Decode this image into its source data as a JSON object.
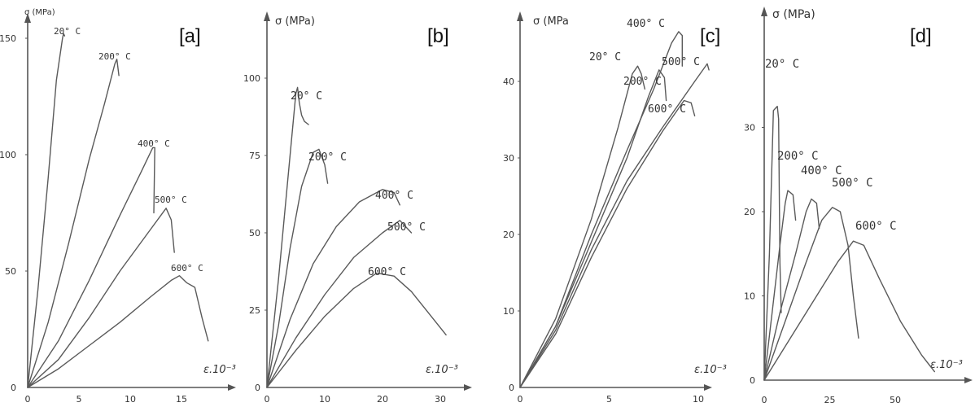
{
  "chart_data": [
    {
      "type": "line",
      "panel": "[a]",
      "ylabel": "σ (MPa)",
      "xlabel": "ε.10⁻³",
      "xlim": [
        0,
        19
      ],
      "ylim": [
        0,
        160
      ],
      "xticks": [
        0,
        5,
        10,
        15
      ],
      "yticks": [
        0,
        50,
        100,
        150
      ],
      "series": [
        {
          "name": "20° C",
          "x": [
            0,
            1,
            2,
            2.8,
            3.4,
            3.5,
            3.6
          ],
          "y": [
            0,
            42,
            90,
            132,
            150,
            152,
            151
          ]
        },
        {
          "name": "200° C",
          "x": [
            0,
            2,
            4,
            6,
            7.5,
            8.5,
            8.7,
            8.9
          ],
          "y": [
            0,
            28,
            62,
            98,
            122,
            139,
            141,
            134
          ]
        },
        {
          "name": "400° C",
          "x": [
            0,
            3,
            6,
            9,
            11,
            12.2,
            12.4,
            12.3
          ],
          "y": [
            0,
            20,
            46,
            74,
            92,
            103,
            103,
            75
          ]
        },
        {
          "name": "500° C",
          "x": [
            0,
            3,
            6,
            9,
            12,
            13.5,
            14,
            14.3
          ],
          "y": [
            0,
            12,
            30,
            50,
            68,
            77,
            72,
            58
          ]
        },
        {
          "name": "600° C",
          "x": [
            0,
            3,
            6,
            9,
            12,
            14,
            14.8,
            15.5,
            16.3,
            17,
            17.6
          ],
          "y": [
            0,
            8,
            18,
            28,
            39,
            46,
            48,
            45,
            43,
            30,
            20
          ]
        }
      ]
    },
    {
      "type": "line",
      "panel": "[b]",
      "ylabel": "σ (MPa)",
      "xlabel": "ε.10⁻³",
      "xlim": [
        0,
        34
      ],
      "ylim": [
        0,
        120
      ],
      "xticks": [
        0,
        10,
        20,
        30
      ],
      "yticks": [
        0,
        25,
        50,
        75,
        100
      ],
      "series": [
        {
          "name": "20° C",
          "x": [
            0,
            2,
            4,
            5,
            5.3,
            5.6,
            6,
            6.5,
            7.2
          ],
          "y": [
            0,
            35,
            75,
            95,
            97,
            92,
            88,
            86,
            85
          ]
        },
        {
          "name": "200° C",
          "x": [
            0,
            2,
            4,
            6,
            8,
            9,
            10,
            10.5
          ],
          "y": [
            0,
            20,
            45,
            65,
            76,
            77,
            72,
            66
          ]
        },
        {
          "name": "400° C",
          "x": [
            0,
            4,
            8,
            12,
            16,
            20,
            22,
            23
          ],
          "y": [
            0,
            22,
            40,
            52,
            60,
            64,
            63,
            59
          ]
        },
        {
          "name": "500° C",
          "x": [
            0,
            5,
            10,
            15,
            20,
            23,
            25
          ],
          "y": [
            0,
            16,
            30,
            42,
            50,
            54,
            50
          ]
        },
        {
          "name": "600° C",
          "x": [
            0,
            5,
            10,
            15,
            19,
            22,
            25,
            28,
            31
          ],
          "y": [
            0,
            12,
            23,
            32,
            37,
            36,
            31,
            24,
            17
          ]
        }
      ]
    },
    {
      "type": "line",
      "panel": "[c]",
      "ylabel": "σ (MPa",
      "xlabel": "ε.10⁻³",
      "xlim": [
        0,
        13
      ],
      "ylim": [
        0,
        46
      ],
      "xticks": [
        0,
        5,
        10
      ],
      "yticks": [
        0,
        10,
        20,
        30,
        40
      ],
      "series": [
        {
          "name": "20° C",
          "x": [
            0,
            2,
            4,
            5.5,
            6.3,
            6.6,
            6.8,
            7.0
          ],
          "y": [
            0,
            9,
            22,
            34,
            41,
            42,
            41,
            39
          ]
        },
        {
          "name": "400° C",
          "x": [
            0,
            2,
            4,
            6,
            7.5,
            8.5,
            8.9,
            9.1,
            9.1
          ],
          "y": [
            0,
            8,
            20,
            31,
            39,
            45,
            46.5,
            46,
            42
          ]
        },
        {
          "name": "200° C",
          "x": [
            0,
            2,
            4,
            6,
            7.2,
            7.8,
            8.1,
            8.2
          ],
          "y": [
            0,
            8,
            19,
            30,
            38,
            41.5,
            40.5,
            37.5
          ]
        },
        {
          "name": "500° C",
          "x": [
            0,
            2,
            4,
            6,
            8,
            9.2,
            9.6,
            9.8
          ],
          "y": [
            0,
            7,
            17,
            26,
            33.5,
            37.5,
            37.2,
            35.5
          ]
        },
        {
          "name": "600° C",
          "x": [
            0,
            2,
            4,
            6,
            8,
            9.8,
            10.5,
            10.6
          ],
          "y": [
            0,
            7.5,
            18,
            27,
            34,
            40,
            42.3,
            41.5
          ]
        }
      ]
    },
    {
      "type": "line",
      "panel": "[d]",
      "ylabel": "σ (MPa)",
      "xlabel": "ε.10⁻³",
      "xlim": [
        0,
        70
      ],
      "ylim": [
        0,
        40
      ],
      "xticks": [
        0,
        25,
        50
      ],
      "yticks": [
        0,
        10,
        20,
        30
      ],
      "series": [
        {
          "name": "20° C",
          "x": [
            0,
            2,
            3.5,
            5,
            5.5,
            6,
            6.5
          ],
          "y": [
            0,
            15,
            32,
            32.5,
            31,
            14,
            8
          ]
        },
        {
          "name": "200° C",
          "x": [
            0,
            3,
            6,
            8,
            9,
            11,
            12
          ],
          "y": [
            0,
            8,
            16,
            21,
            22.5,
            22,
            19
          ]
        },
        {
          "name": "400° C",
          "x": [
            0,
            6,
            12,
            16,
            18,
            20,
            21
          ],
          "y": [
            0,
            8,
            15,
            20,
            21.5,
            21,
            18
          ]
        },
        {
          "name": "500° C",
          "x": [
            0,
            8,
            16,
            22,
            26,
            29,
            32,
            34,
            36
          ],
          "y": [
            0,
            7,
            14,
            19,
            20.5,
            20,
            16,
            10,
            5
          ]
        },
        {
          "name": "600° C",
          "x": [
            0,
            10,
            20,
            28,
            34,
            38,
            44,
            52,
            60,
            65
          ],
          "y": [
            0,
            5,
            10,
            14,
            16.5,
            16,
            12,
            7,
            3,
            1
          ]
        }
      ]
    }
  ]
}
